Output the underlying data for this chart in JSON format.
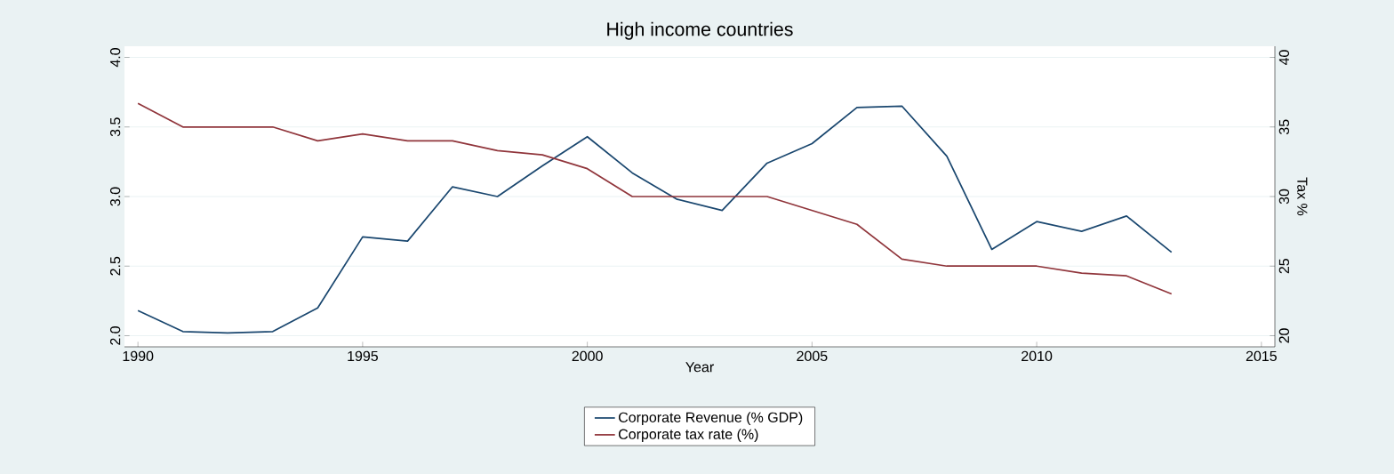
{
  "chart_data": {
    "type": "line",
    "title": "High income countries",
    "xlabel": "Year",
    "y2label": "Tax %",
    "x": [
      1990,
      1991,
      1992,
      1993,
      1994,
      1995,
      1996,
      1997,
      1998,
      1999,
      2000,
      2001,
      2002,
      2003,
      2004,
      2005,
      2006,
      2007,
      2008,
      2009,
      2010,
      2011,
      2012,
      2013
    ],
    "series": [
      {
        "name": "Corporate Revenue (% GDP)",
        "color": "#1a476f",
        "values": [
          2.18,
          2.03,
          2.02,
          2.03,
          2.2,
          2.71,
          2.68,
          3.07,
          3.0,
          3.22,
          3.43,
          3.17,
          2.98,
          2.9,
          3.24,
          3.38,
          3.64,
          3.65,
          3.29,
          2.62,
          2.82,
          2.75,
          2.86,
          2.6
        ]
      },
      {
        "name": "Corporate tax rate (%)",
        "color": "#90353b",
        "axis": "y2",
        "values": [
          36.7,
          35,
          35,
          35,
          34,
          34.5,
          34,
          34,
          33.3,
          33,
          32,
          30,
          30,
          30,
          30,
          29,
          28,
          25.5,
          25,
          25,
          25,
          24.5,
          24.3,
          23
        ]
      }
    ],
    "xlim": [
      1989.7,
      2015.3
    ],
    "xticks": [
      1990,
      1995,
      2000,
      2005,
      2010,
      2015
    ],
    "ylim": [
      1.92,
      4.08
    ],
    "yticks": [
      {
        "value": 2,
        "label": "2.0"
      },
      {
        "value": 2.5,
        "label": "2.5"
      },
      {
        "value": 3,
        "label": "3.0"
      },
      {
        "value": 3.5,
        "label": "3.5"
      },
      {
        "value": 4,
        "label": "4.0"
      }
    ],
    "y2lim": [
      19.2,
      40.8
    ],
    "y2ticks": [
      20,
      25,
      30,
      35,
      40
    ],
    "grid": "y",
    "legend": "bottom",
    "marker": "none",
    "line_style": "solid"
  }
}
